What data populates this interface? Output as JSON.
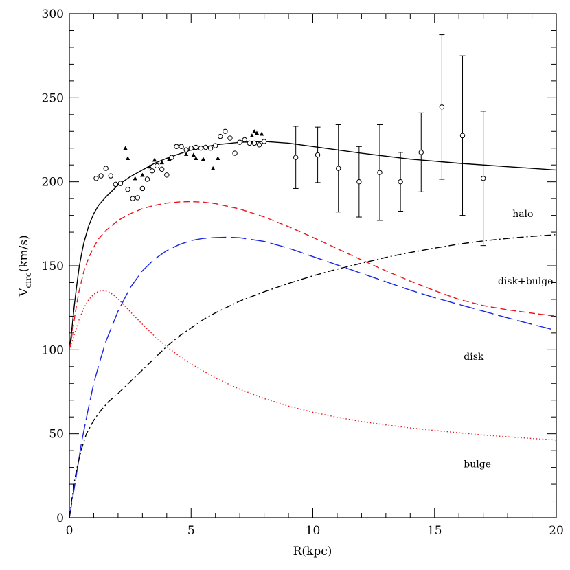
{
  "chart_data": {
    "type": "line",
    "xlabel": "R(kpc)",
    "ylabel": {
      "main": "V",
      "sub": "circ",
      "rest": "(km/s)"
    },
    "xlim": [
      0,
      20
    ],
    "ylim": [
      0,
      300
    ],
    "x_ticks": [
      0,
      5,
      10,
      15,
      20
    ],
    "y_ticks": [
      0,
      50,
      100,
      150,
      200,
      250,
      300
    ],
    "x_ticks_text": [
      "0",
      "5",
      "10",
      "15",
      "20"
    ],
    "y_ticks_text": [
      "0",
      "50",
      "100",
      "150",
      "200",
      "250",
      "300"
    ],
    "grid": false,
    "annotations": [
      {
        "text": "halo",
        "x": 18.2,
        "y": 179
      },
      {
        "text": "disk+bulge",
        "x": 17.6,
        "y": 139
      },
      {
        "text": "disk",
        "x": 16.2,
        "y": 94
      },
      {
        "text": "bulge",
        "x": 16.2,
        "y": 30
      }
    ],
    "series": [
      {
        "key": "total",
        "color": "#000000",
        "style": "solid",
        "x": [
          0,
          0.1,
          0.2,
          0.3,
          0.4,
          0.5,
          0.6,
          0.8,
          1.0,
          1.2,
          1.5,
          2.0,
          2.5,
          3.0,
          3.5,
          4.0,
          5.0,
          6.0,
          7.0,
          8.0,
          9.0,
          10.0,
          12.0,
          14.0,
          16.0,
          18.0,
          20.0
        ],
        "y": [
          100,
          112,
          126,
          138,
          149,
          157,
          164,
          174,
          181,
          186,
          191,
          198,
          203,
          207,
          211,
          214,
          219,
          222,
          223.5,
          224,
          223,
          221,
          217,
          213.5,
          211,
          209,
          207
        ]
      },
      {
        "key": "disk+bulge",
        "color": "#e8141a",
        "style": "dashed",
        "x": [
          0,
          0.1,
          0.2,
          0.3,
          0.4,
          0.5,
          0.6,
          0.8,
          1.0,
          1.2,
          1.5,
          2.0,
          2.5,
          3.0,
          3.5,
          4.0,
          4.5,
          5.0,
          5.5,
          6.0,
          7.0,
          8.0,
          9.0,
          10.0,
          11.0,
          12.0,
          13.0,
          14.0,
          15.0,
          16.0,
          17.0,
          18.0,
          19.0,
          20.0
        ],
        "y": [
          100,
          108,
          118,
          127,
          135,
          141,
          147,
          155,
          161,
          166,
          171,
          177,
          181,
          184,
          186,
          187.3,
          188,
          188.2,
          187.9,
          187,
          183.8,
          179.1,
          173.3,
          166.9,
          160.2,
          153.5,
          147,
          140.9,
          135.2,
          130,
          126.3,
          123.8,
          121.8,
          120
        ]
      },
      {
        "key": "disk",
        "color": "#1a25e0",
        "style": "long-dashed",
        "x": [
          0,
          0.25,
          0.5,
          0.75,
          1.0,
          1.25,
          1.5,
          2.0,
          2.5,
          3.0,
          3.5,
          4.0,
          4.5,
          5.0,
          5.5,
          6.0,
          6.5,
          7.0,
          8.0,
          9.0,
          10.0,
          11.0,
          12.0,
          13.0,
          14.0,
          15.0,
          16.0,
          17.0,
          18.0,
          19.0,
          20.0
        ],
        "y": [
          0,
          22,
          45,
          63,
          80,
          93,
          105,
          123,
          137,
          147,
          154,
          159,
          162.5,
          165,
          166.3,
          166.8,
          167,
          166.7,
          164.5,
          160.5,
          155.5,
          150.5,
          145.5,
          140.5,
          135.5,
          131,
          127,
          123,
          119,
          115.2,
          111.5
        ]
      },
      {
        "key": "bulge",
        "color": "#e8141a",
        "style": "dotted",
        "x": [
          0,
          0.2,
          0.4,
          0.6,
          0.8,
          1.0,
          1.2,
          1.4,
          1.6,
          1.8,
          2.0,
          2.3,
          2.6,
          3.0,
          3.5,
          4.0,
          4.5,
          5.0,
          6.0,
          7.0,
          8.0,
          9.0,
          10.0,
          11.0,
          12.0,
          13.0,
          14.0,
          15.0,
          16.0,
          17.0,
          18.0,
          19.0,
          20.0
        ],
        "y": [
          100,
          109,
          118,
          125,
          130,
          133,
          134.8,
          135.3,
          134.6,
          132.8,
          130.3,
          125.8,
          121.2,
          115.2,
          108.1,
          101.8,
          96.4,
          91.6,
          83.2,
          76.5,
          71,
          66.5,
          62.8,
          59.8,
          57.3,
          55.3,
          53.5,
          52,
          50.6,
          49.3,
          48.2,
          47.2,
          46.3
        ]
      },
      {
        "key": "halo",
        "color": "#000000",
        "style": "dash-dot",
        "x": [
          0,
          0.1,
          0.2,
          0.3,
          0.5,
          0.7,
          1.0,
          1.3,
          1.6,
          2.0,
          2.5,
          3.0,
          3.5,
          4.0,
          4.5,
          5.0,
          5.5,
          6.0,
          7.0,
          8.0,
          9.0,
          10.0,
          11.0,
          12.0,
          13.0,
          14.0,
          15.0,
          16.0,
          17.0,
          18.0,
          19.0,
          20.0
        ],
        "y": [
          0,
          11,
          21,
          29,
          41,
          50,
          58,
          64,
          69,
          74,
          81,
          88,
          95,
          102,
          108,
          113,
          118,
          122,
          129,
          134.5,
          139.5,
          144,
          148,
          151.5,
          155,
          157.9,
          160.5,
          162.9,
          164.8,
          166.3,
          167.5,
          168.5
        ]
      }
    ],
    "data_points": {
      "circles": {
        "marker": "open-circle",
        "x": [
          1.1,
          1.3,
          1.5,
          1.7,
          1.9,
          2.1,
          2.4,
          2.6,
          2.8,
          3.0,
          3.2,
          3.4,
          3.6,
          3.8,
          4.0,
          4.2,
          4.4,
          4.6,
          4.8,
          5.0,
          5.2,
          5.4,
          5.6,
          5.8,
          6.0,
          6.2,
          6.4,
          6.6,
          6.8,
          7.0,
          7.2,
          7.4,
          7.6,
          7.8,
          8.0
        ],
        "y": [
          202,
          203.5,
          208,
          203.5,
          198.5,
          199,
          195.5,
          190,
          190.5,
          196,
          201.5,
          206.5,
          209.5,
          207.5,
          204,
          214.5,
          221,
          221,
          219,
          220,
          220.5,
          220,
          220.5,
          220,
          221.5,
          227,
          230,
          226,
          217,
          223.5,
          225,
          223,
          223,
          222,
          224
        ]
      },
      "triangles": {
        "marker": "filled-triangle",
        "x": [
          2.3,
          2.4,
          2.7,
          3.0,
          3.3,
          3.5,
          3.8,
          4.1,
          4.8,
          5.1,
          5.2,
          5.5,
          5.9,
          6.1,
          7.5,
          7.6,
          7.7,
          7.9
        ],
        "y": [
          220,
          214,
          202,
          204,
          209,
          213,
          211.5,
          213.5,
          216.5,
          216,
          214,
          213.5,
          208,
          214,
          227.5,
          230,
          229,
          228.5
        ]
      },
      "error_bars": {
        "marker": "open-circle",
        "x": [
          9.3,
          10.2,
          11.05,
          11.9,
          12.75,
          13.6,
          14.45,
          15.3,
          16.15,
          17.0
        ],
        "y": [
          214.5,
          216,
          208,
          200,
          205.5,
          200,
          217.5,
          244.5,
          227.5,
          202
        ],
        "ylow": [
          196,
          199.5,
          182,
          179,
          177,
          182.5,
          194,
          201.5,
          180,
          162
        ],
        "yhigh": [
          233,
          232.5,
          234,
          221,
          234,
          217.5,
          241,
          287.5,
          275,
          242
        ]
      }
    }
  }
}
